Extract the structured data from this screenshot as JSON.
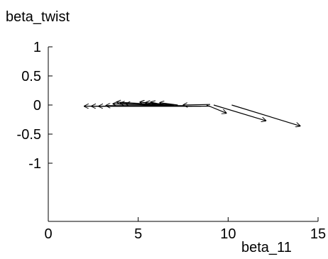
{
  "chart_data": {
    "type": "quiver",
    "xlabel": "beta_11",
    "ylabel": "beta_twist",
    "xlim": [
      0,
      15
    ],
    "ylim": [
      -2,
      1
    ],
    "xticks": [
      0,
      5,
      10,
      15
    ],
    "yticks": [
      1,
      0.5,
      0,
      -0.5,
      -1
    ],
    "ytick_labels": [
      "1",
      "0.5",
      "0",
      "-0.5",
      "-1"
    ],
    "grid": false,
    "arrow_color": "#000000",
    "arrows": [
      {
        "x0": 10.2,
        "y0": 0.0,
        "x1": 14.0,
        "y1": -0.36
      },
      {
        "x0": 9.2,
        "y0": 0.0,
        "x1": 12.1,
        "y1": -0.27
      },
      {
        "x0": 8.8,
        "y0": 0.0,
        "x1": 9.9,
        "y1": -0.14
      },
      {
        "x0": 9.0,
        "y0": -0.02,
        "x1": 2.0,
        "y1": -0.02
      },
      {
        "x0": 8.5,
        "y0": -0.02,
        "x1": 2.4,
        "y1": -0.02
      },
      {
        "x0": 8.0,
        "y0": -0.02,
        "x1": 2.8,
        "y1": -0.02
      },
      {
        "x0": 7.5,
        "y0": -0.01,
        "x1": 3.2,
        "y1": -0.01
      },
      {
        "x0": 7.0,
        "y0": -0.01,
        "x1": 3.6,
        "y1": 0.02
      },
      {
        "x0": 6.5,
        "y0": 0.0,
        "x1": 3.8,
        "y1": 0.05
      },
      {
        "x0": 6.8,
        "y0": 0.0,
        "x1": 5.1,
        "y1": 0.05
      },
      {
        "x0": 7.0,
        "y0": 0.0,
        "x1": 5.4,
        "y1": 0.04
      },
      {
        "x0": 7.2,
        "y0": 0.0,
        "x1": 6.2,
        "y1": 0.04
      },
      {
        "x0": 9.0,
        "y0": 0.01,
        "x1": 7.5,
        "y1": 0.0
      },
      {
        "x0": 6.0,
        "y0": 0.0,
        "x1": 4.3,
        "y1": 0.02
      },
      {
        "x0": 5.5,
        "y0": 0.0,
        "x1": 4.0,
        "y1": 0.03
      },
      {
        "x0": 6.3,
        "y0": 0.01,
        "x1": 5.7,
        "y1": 0.05
      }
    ]
  }
}
